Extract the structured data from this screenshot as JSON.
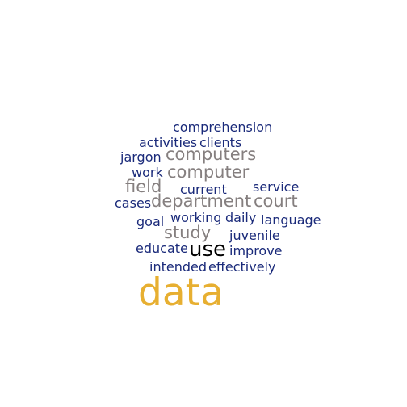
{
  "word_cloud": {
    "words": [
      {
        "key": "comprehension",
        "text": "comprehension",
        "color": "#1a2a7a"
      },
      {
        "key": "activities",
        "text": "activities",
        "color": "#1a2a7a"
      },
      {
        "key": "clients",
        "text": "clients",
        "color": "#1a2a7a"
      },
      {
        "key": "jargon",
        "text": "jargon",
        "color": "#1a2a7a"
      },
      {
        "key": "computers",
        "text": "computers",
        "color": "#857f7f"
      },
      {
        "key": "work",
        "text": "work",
        "color": "#1a2a7a"
      },
      {
        "key": "computer",
        "text": "computer",
        "color": "#857f7f"
      },
      {
        "key": "field",
        "text": "field",
        "color": "#857f7f"
      },
      {
        "key": "current",
        "text": "current",
        "color": "#1a2a7a"
      },
      {
        "key": "service",
        "text": "service",
        "color": "#1a2a7a"
      },
      {
        "key": "cases",
        "text": "cases",
        "color": "#1a2a7a"
      },
      {
        "key": "department",
        "text": "department",
        "color": "#857f7f"
      },
      {
        "key": "court",
        "text": "court",
        "color": "#857f7f"
      },
      {
        "key": "goal",
        "text": "goal",
        "color": "#1a2a7a"
      },
      {
        "key": "working",
        "text": "working",
        "color": "#1a2a7a"
      },
      {
        "key": "daily",
        "text": "daily",
        "color": "#1a2a7a"
      },
      {
        "key": "language",
        "text": "language",
        "color": "#1a2a7a"
      },
      {
        "key": "study",
        "text": "study",
        "color": "#857f7f"
      },
      {
        "key": "juvenile",
        "text": "juvenile",
        "color": "#1a2a7a"
      },
      {
        "key": "educate",
        "text": "educate",
        "color": "#1a2a7a"
      },
      {
        "key": "use",
        "text": "use",
        "color": "#000000"
      },
      {
        "key": "improve",
        "text": "improve",
        "color": "#1a2a7a"
      },
      {
        "key": "intended",
        "text": "intended",
        "color": "#1a2a7a"
      },
      {
        "key": "effectively",
        "text": "effectively",
        "color": "#1a2a7a"
      },
      {
        "key": "data",
        "text": "data",
        "color": "#e7af31"
      }
    ]
  }
}
